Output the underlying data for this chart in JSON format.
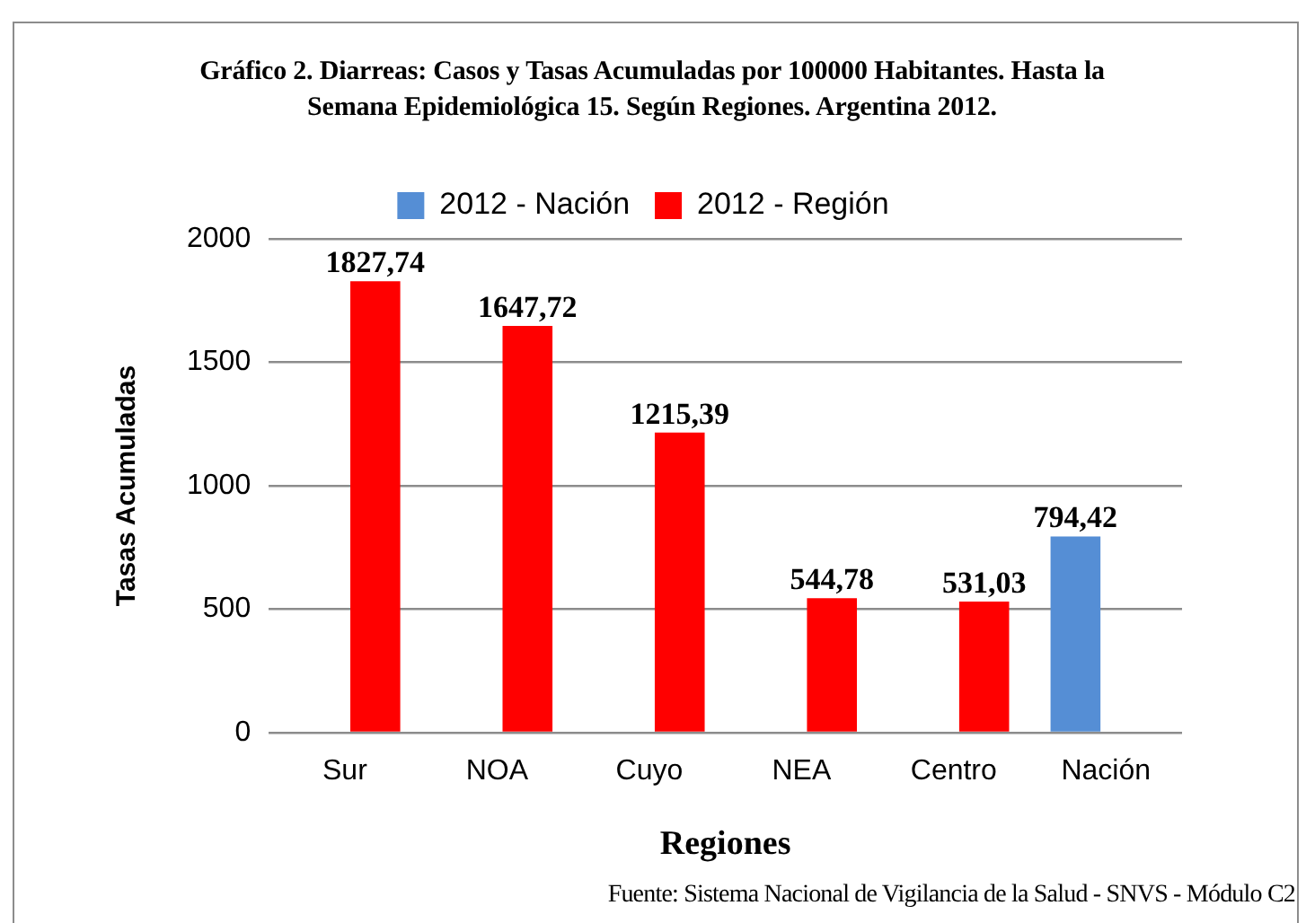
{
  "chart_data": {
    "type": "bar",
    "title": "Gráfico 2. Diarreas: Casos y Tasas Acumuladas por 100000 Habitantes. Hasta la Semana Epidemiológica 15. Según Regiones. Argentina 2012.",
    "xlabel": "Regiones",
    "ylabel": "Tasas Acumuladas",
    "categories": [
      "Sur",
      "NOA",
      "Cuyo",
      "NEA",
      "Centro",
      "Nación"
    ],
    "series": [
      {
        "name": "2012 - Nación",
        "color": "#558ed5",
        "values": [
          null,
          null,
          null,
          null,
          null,
          794.42
        ],
        "value_labels": [
          null,
          null,
          null,
          null,
          null,
          "794,42"
        ]
      },
      {
        "name": "2012 - Región",
        "color": "#ff0000",
        "values": [
          1827.74,
          1647.72,
          1215.39,
          544.78,
          531.03,
          null
        ],
        "value_labels": [
          "1827,74",
          "1647,72",
          "1215,39",
          "544,78",
          "531,03",
          null
        ]
      }
    ],
    "ylim": [
      0,
      2000
    ],
    "yticks": [
      0,
      500,
      1000,
      1500,
      2000
    ],
    "grid": "y",
    "legend": "top",
    "annotations": [
      "Fuente: Sistema Nacional de Vigilancia de la Salud - SNVS - Módulo C2"
    ]
  }
}
